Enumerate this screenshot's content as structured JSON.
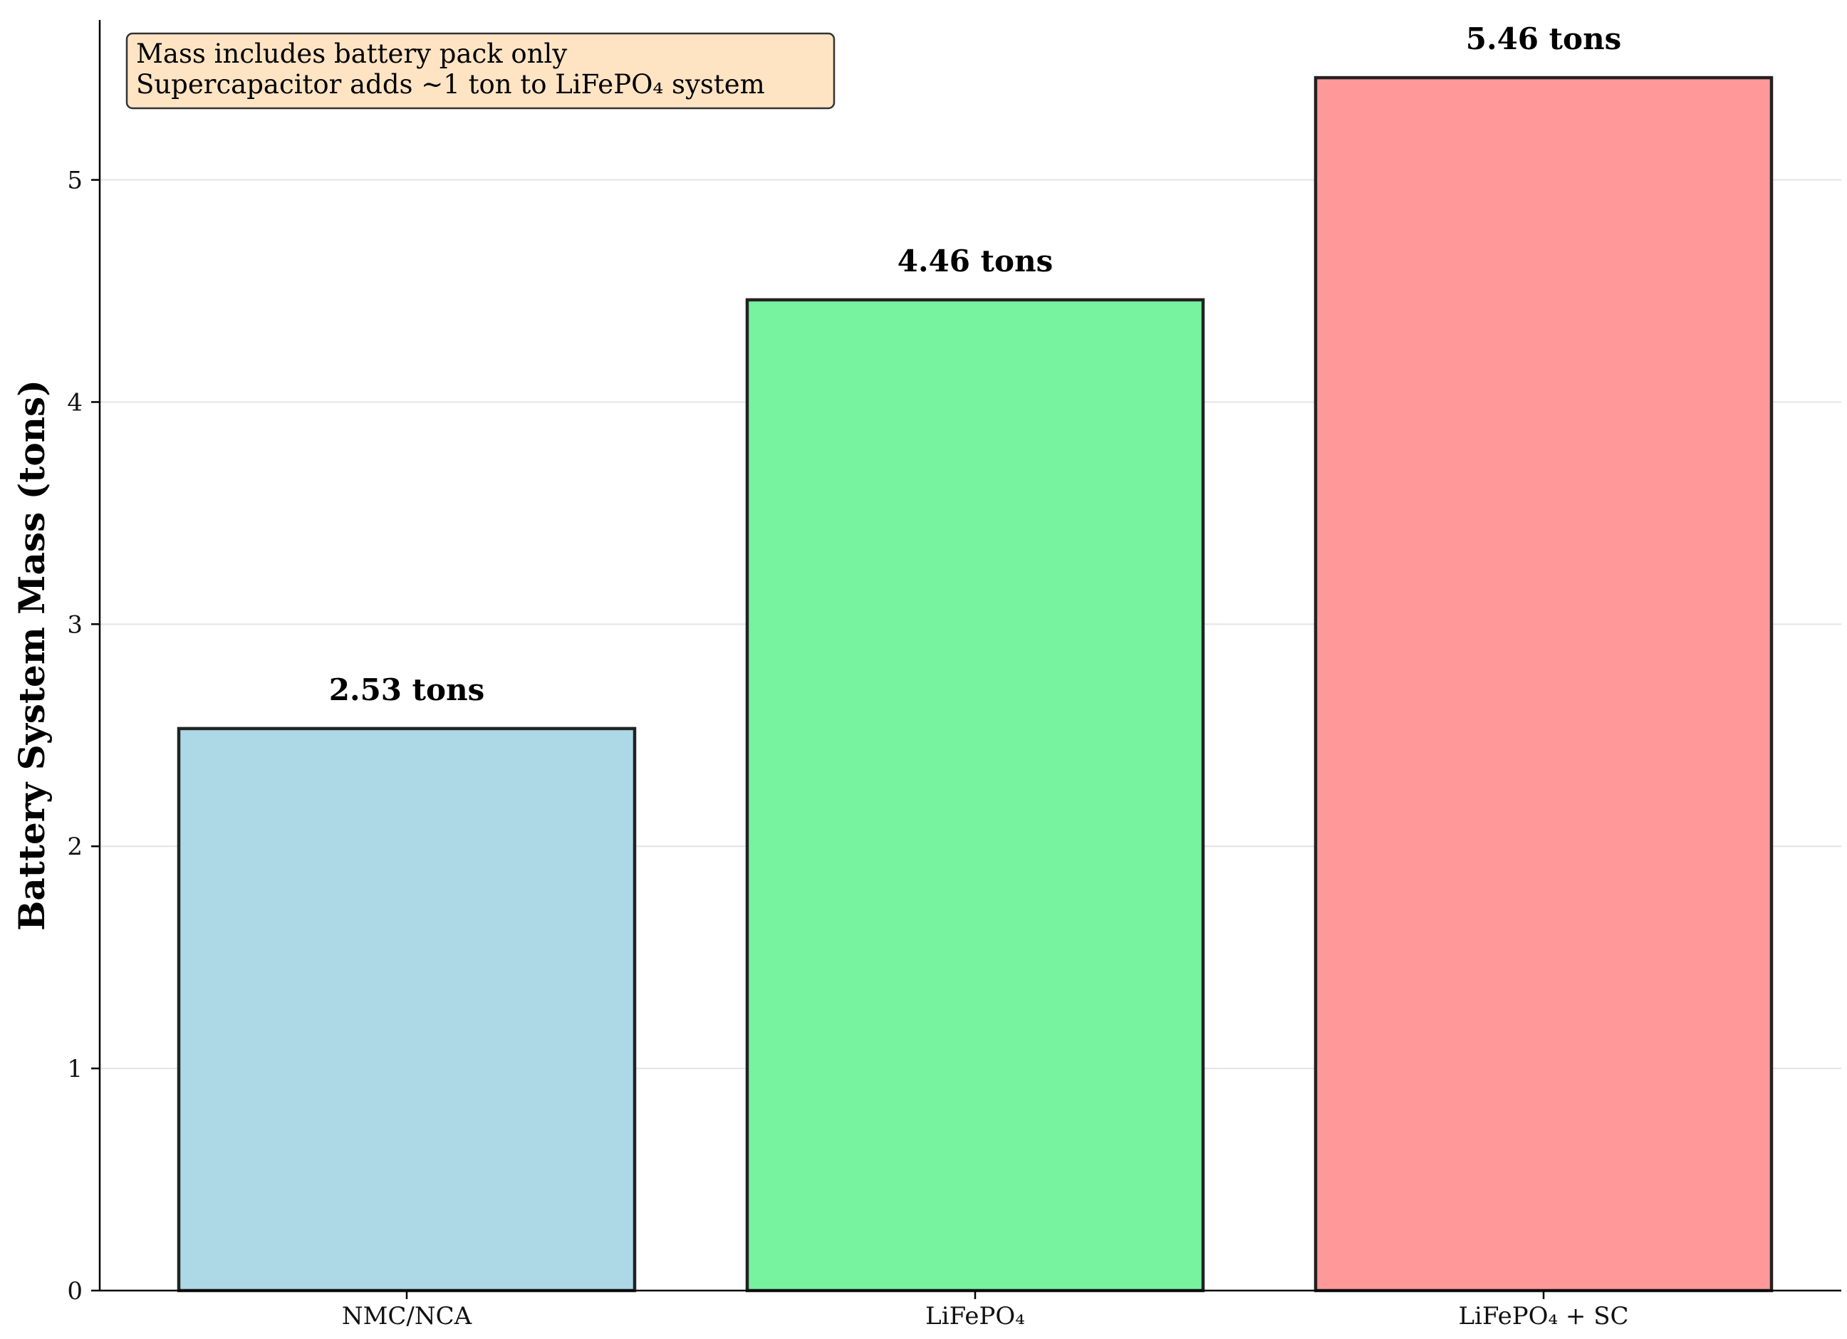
{
  "chart_data": {
    "type": "bar",
    "title": "",
    "xlabel": "",
    "ylabel": "Battery System Mass (tons)",
    "categories": [
      "NMC/NCA",
      "LiFePO₄",
      "LiFePO₄ + SC"
    ],
    "values": [
      2.53,
      4.46,
      5.46
    ],
    "value_labels": [
      "2.53 tons",
      "4.46 tons",
      "5.46 tons"
    ],
    "colors": [
      "#add8e6",
      "#77f29f",
      "#ff9999"
    ],
    "edge_color": "#222222",
    "ylim": [
      0,
      5.72
    ],
    "yticks": [
      0,
      1,
      2,
      3,
      4,
      5
    ],
    "grid": "horizontal",
    "annotation": {
      "lines": [
        "Mass includes battery pack only",
        "Supercapacitor adds ~1 ton to LiFePO₄ system"
      ],
      "background": "#ffe4c4",
      "placement": "top-left"
    }
  }
}
